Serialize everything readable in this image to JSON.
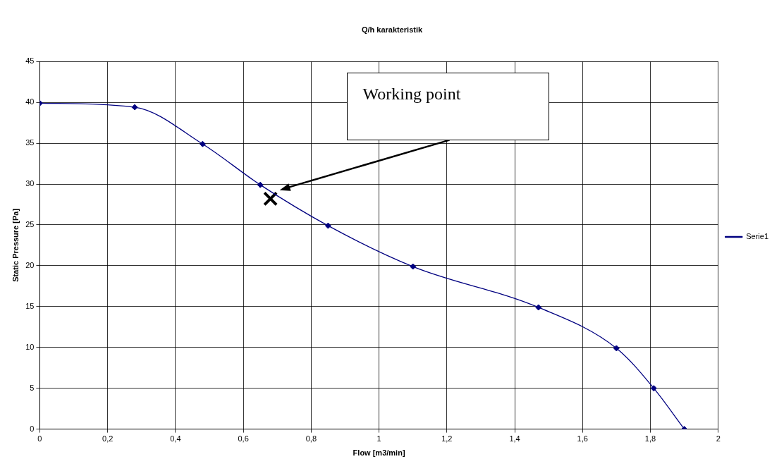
{
  "chart_data": {
    "type": "line",
    "title": "Q/h karakteristik",
    "xlabel": "Flow [m3/min]",
    "ylabel": "Static Pressure [Pa]",
    "x": [
      0,
      0.28,
      0.48,
      0.65,
      0.85,
      1.1,
      1.47,
      1.7,
      1.81,
      1.9
    ],
    "series": [
      {
        "name": "Serie1",
        "color": "#000080",
        "values": [
          39.9,
          39.4,
          34.9,
          29.9,
          24.9,
          19.9,
          14.9,
          9.9,
          5,
          0
        ],
        "marker": "diamond"
      },
      {
        "type": "scatter",
        "color": "#000000",
        "x": [
          0.68
        ],
        "values": [
          28.2
        ],
        "marker": "cross"
      }
    ],
    "annotations": [
      "Working point"
    ],
    "xlim": [
      0,
      2
    ],
    "xticks": [
      0,
      {
        "value": 0.2,
        "label": "0,2"
      },
      {
        "value": 0.4,
        "label": "0,4"
      },
      {
        "value": 0.6,
        "label": "0,6"
      },
      {
        "value": 0.8,
        "label": "0,8"
      },
      1,
      {
        "value": 1.2,
        "label": "1,2"
      },
      {
        "value": 1.4,
        "label": "1,4"
      },
      {
        "value": 1.6,
        "label": "1,6"
      },
      {
        "value": 1.8,
        "label": "1,8"
      },
      2
    ],
    "ylim": [
      0,
      45
    ],
    "yticks": [
      0,
      5,
      10,
      15,
      20,
      25,
      30,
      35,
      40,
      45
    ],
    "grid": true,
    "legend": "right",
    "line_style": "solid"
  }
}
